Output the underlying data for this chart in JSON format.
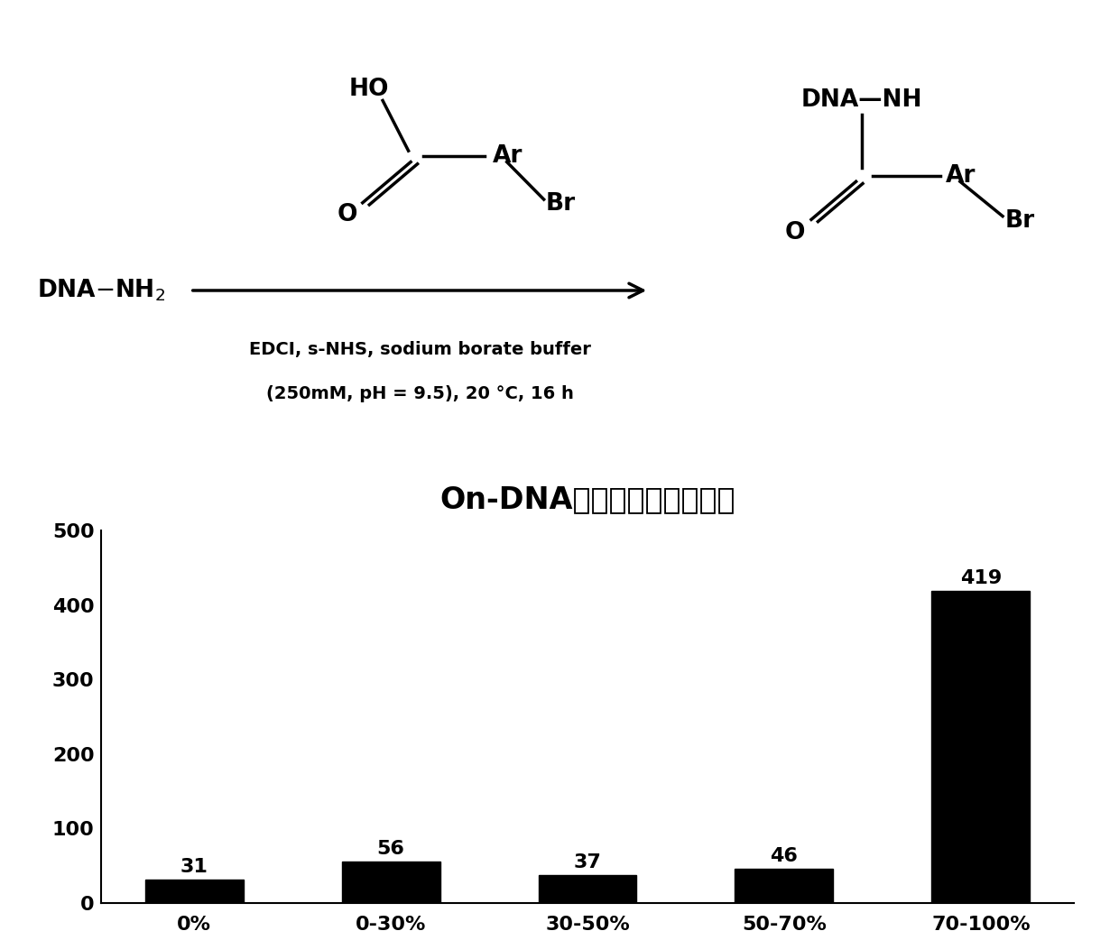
{
  "bar_categories": [
    "0%",
    "0-30%",
    "30-50%",
    "50-70%",
    "70-100%"
  ],
  "bar_values": [
    31,
    56,
    37,
    46,
    419
  ],
  "bar_color": "#000000",
  "chart_title": "On-DNA芳基渴代物产率分布",
  "ylim": [
    0,
    500
  ],
  "yticks": [
    0,
    100,
    200,
    300,
    400,
    500
  ],
  "reagent_line1": "EDCI, s-NHS, sodium borate buffer",
  "reagent_line2": "(250mM, pH = 9.5), 20 °C, 16 h",
  "bg_color": "#ffffff",
  "bar_width": 0.5
}
